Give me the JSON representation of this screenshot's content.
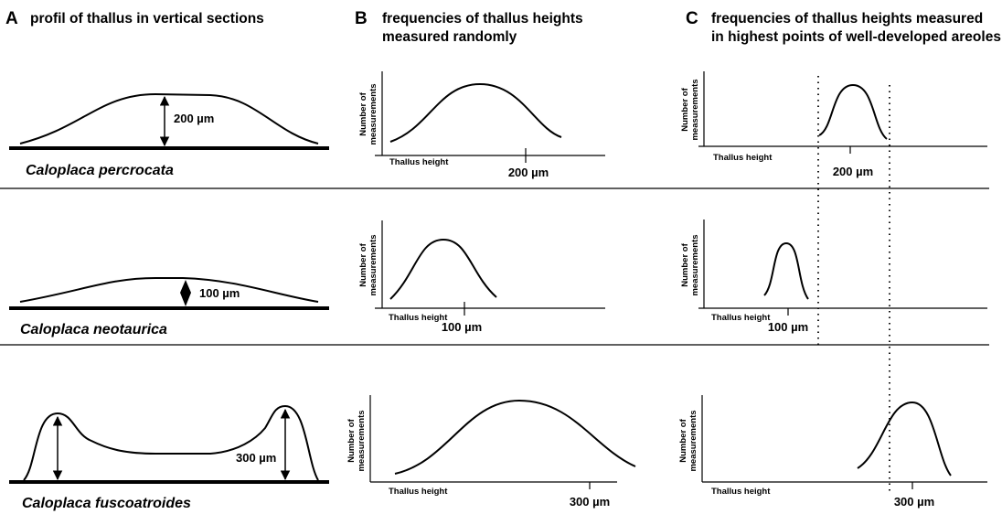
{
  "panels": [
    {
      "letter": "A",
      "title": [
        "profil of thallus in vertical sections"
      ]
    },
    {
      "letter": "B",
      "title": [
        "frequencies of thallus heights",
        "measured randomly"
      ]
    },
    {
      "letter": "C",
      "title": [
        "frequencies of thallus heights measured",
        "in highest points of well-developed areoles"
      ]
    }
  ],
  "axis_labels": {
    "y": [
      "Number of",
      "measurements"
    ],
    "x": "Thallus height"
  },
  "rows": [
    {
      "species": "Caloplaca percrocata",
      "height": "200 µm"
    },
    {
      "species": "Caloplaca neotaurica",
      "height": "100 µm"
    },
    {
      "species": "Caloplaca fuscoatroides",
      "height": "300 µm"
    }
  ]
}
